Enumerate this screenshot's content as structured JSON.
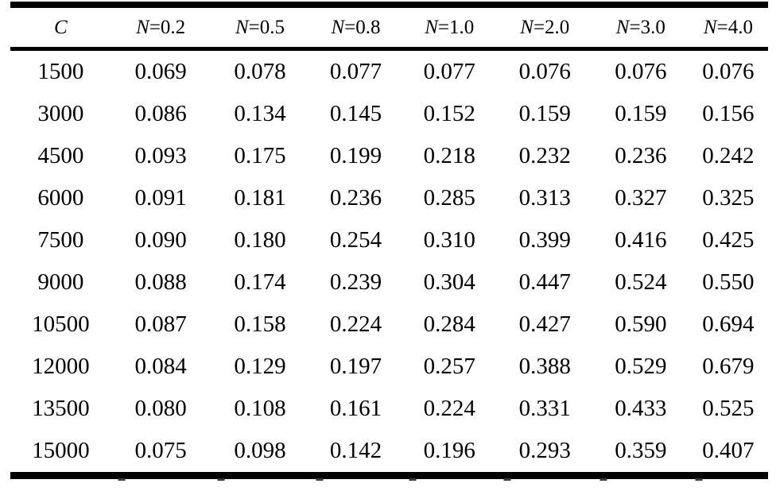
{
  "table": {
    "description": "paper-data-table",
    "columns": [
      "C",
      "N=0.2",
      "N=0.5",
      "N=0.8",
      "N=1.0",
      "N=2.0",
      "N=3.0",
      "N=4.0"
    ],
    "rows": [
      [
        "1500",
        "0.069",
        "0.078",
        "0.077",
        "0.077",
        "0.076",
        "0.076",
        "0.076"
      ],
      [
        "3000",
        "0.086",
        "0.134",
        "0.145",
        "0.152",
        "0.159",
        "0.159",
        "0.156"
      ],
      [
        "4500",
        "0.093",
        "0.175",
        "0.199",
        "0.218",
        "0.232",
        "0.236",
        "0.242"
      ],
      [
        "6000",
        "0.091",
        "0.181",
        "0.236",
        "0.285",
        "0.313",
        "0.327",
        "0.325"
      ],
      [
        "7500",
        "0.090",
        "0.180",
        "0.254",
        "0.310",
        "0.399",
        "0.416",
        "0.425"
      ],
      [
        "9000",
        "0.088",
        "0.174",
        "0.239",
        "0.304",
        "0.447",
        "0.524",
        "0.550"
      ],
      [
        "10500",
        "0.087",
        "0.158",
        "0.224",
        "0.284",
        "0.427",
        "0.590",
        "0.694"
      ],
      [
        "12000",
        "0.084",
        "0.129",
        "0.197",
        "0.257",
        "0.388",
        "0.529",
        "0.679"
      ],
      [
        "13500",
        "0.080",
        "0.108",
        "0.161",
        "0.224",
        "0.331",
        "0.433",
        "0.525"
      ],
      [
        "15000",
        "0.075",
        "0.098",
        "0.142",
        "0.196",
        "0.293",
        "0.359",
        "0.407"
      ]
    ]
  },
  "colors": {
    "text": "#000000",
    "rule": "#000000",
    "background": "#ffffff"
  }
}
